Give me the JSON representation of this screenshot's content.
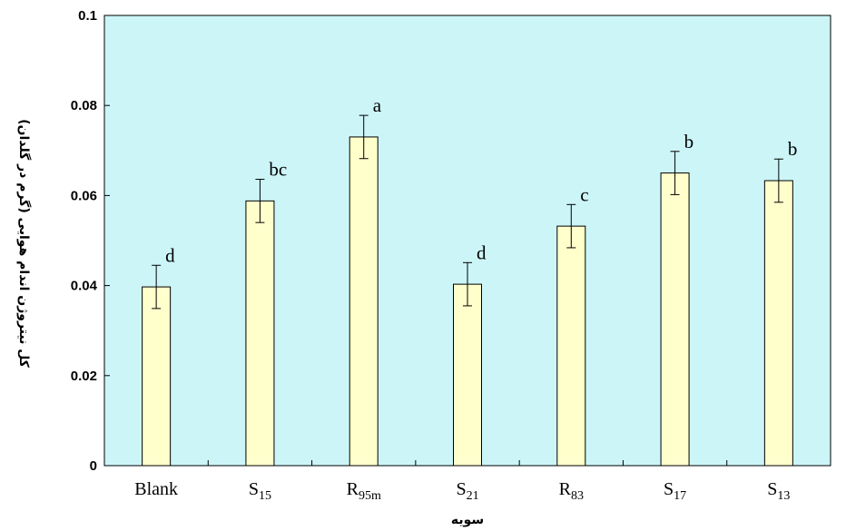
{
  "chart_data": {
    "type": "bar",
    "categories": [
      {
        "base": "Blank",
        "sub": ""
      },
      {
        "base": "S",
        "sub": "15"
      },
      {
        "base": "R",
        "sub": "95m"
      },
      {
        "base": "S",
        "sub": "21"
      },
      {
        "base": "R",
        "sub": "83"
      },
      {
        "base": "S",
        "sub": "17"
      },
      {
        "base": "S",
        "sub": "13"
      }
    ],
    "values": [
      0.0397,
      0.0588,
      0.073,
      0.0403,
      0.0532,
      0.065,
      0.0633
    ],
    "errors": [
      0.0048,
      0.0048,
      0.0048,
      0.0048,
      0.0048,
      0.0048,
      0.0048
    ],
    "letters": [
      "d",
      "bc",
      "a",
      "d",
      "c",
      "b",
      "b"
    ],
    "ylim": [
      0,
      0.1
    ],
    "yticks": [
      "0",
      "0.02",
      "0.04",
      "0.06",
      "0.08",
      "0.1"
    ],
    "ytick_values": [
      0,
      0.02,
      0.04,
      0.06,
      0.08,
      0.1
    ],
    "xlabel": "سویه",
    "ylabel": "کل نیتروژن اندام هوایی (گرم در گلدان)",
    "grid": false,
    "colors": {
      "plot_bg": "#ccf5f8",
      "bar_fill": "#ffffcc",
      "bar_stroke": "#000000"
    }
  }
}
